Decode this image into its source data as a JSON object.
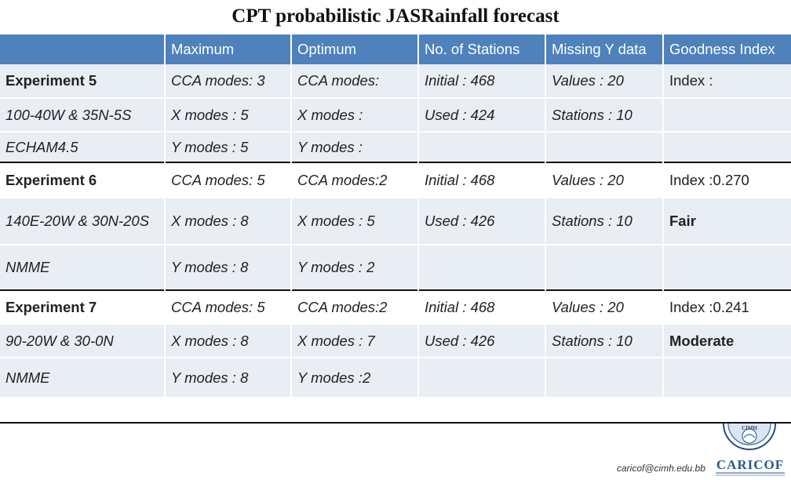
{
  "title": "CPT probabilistic  JASRainfall forecast",
  "headers": [
    "",
    "Maximum",
    "Optimum",
    "No. of Stations",
    "Missing Y data",
    "Goodness Index"
  ],
  "rows": [
    {
      "cells": [
        "Experiment 5",
        "CCA modes: 3",
        "CCA modes:",
        "Initial : 468",
        "Values : 20",
        "Index :"
      ]
    },
    {
      "cells": [
        "100-40W & 35N-5S",
        "X modes : 5",
        "X modes :",
        "Used : 424",
        "Stations : 10",
        ""
      ]
    },
    {
      "cells": [
        "ECHAM4.5",
        "Y modes : 5",
        "Y modes :",
        "",
        "",
        ""
      ]
    },
    {
      "cells": [
        "Experiment 6",
        "CCA modes: 5",
        "CCA modes:2",
        "Initial : 468",
        "Values : 20",
        "Index :0.270"
      ]
    },
    {
      "cells": [
        "140E-20W & 30N-20S",
        "X modes : 8",
        "X modes : 5",
        "Used : 426",
        "Stations : 10",
        "Fair"
      ]
    },
    {
      "cells": [
        "NMME",
        "Y modes : 8",
        "Y modes : 2",
        "",
        "",
        ""
      ]
    },
    {
      "cells": [
        "Experiment 7",
        "CCA modes: 5",
        "CCA modes:2",
        "Initial : 468",
        "Values : 20",
        "Index :0.241"
      ]
    },
    {
      "cells": [
        "90-20W & 30-0N",
        "X modes : 8",
        "X modes : 7",
        "Used : 426",
        "Stations : 10",
        "Moderate"
      ]
    },
    {
      "cells": [
        "NMME",
        "Y modes : 8",
        "Y modes :2",
        "",
        "",
        ""
      ]
    }
  ],
  "footer": {
    "email": "caricof@cimh.edu.bb",
    "logo_seal_text": "CIMH",
    "logo_text": "CARICOF"
  },
  "colors": {
    "header_bg": "#4f81bd",
    "band_bg": "#e9edf4",
    "rule": "#111111"
  }
}
